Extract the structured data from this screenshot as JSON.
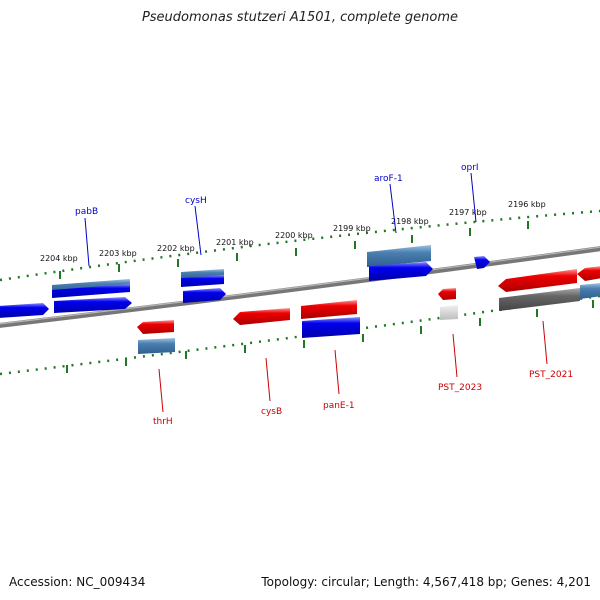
{
  "title": "Pseudomonas stutzeri A1501, complete genome",
  "footer": {
    "accession": "Accession: NC_009434",
    "summary": "Topology: circular; Length: 4,567,418 bp; Genes: 4,201"
  },
  "colors": {
    "forward_cds": "#0000ee",
    "reverse_cds": "#ee0000",
    "forward_label": "#0000cc",
    "reverse_label": "#cc0000",
    "gene_feature": "#4a7fb0",
    "other_feature": "#666666",
    "rna_feature": "#cccccc",
    "backbone": "#888888",
    "ticks": "#227722"
  },
  "ticks": [
    "2204 kbp",
    "2203 kbp",
    "2202 kbp",
    "2201 kbp",
    "2200 kbp",
    "2199 kbp",
    "2198 kbp",
    "2197 kbp",
    "2196 kbp"
  ],
  "forward_labels": [
    "pabB",
    "cysH",
    "aroF-1",
    "oprI"
  ],
  "reverse_labels": [
    "thrH",
    "cysB",
    "panE-1",
    "PST_2023",
    "PST_2021"
  ]
}
